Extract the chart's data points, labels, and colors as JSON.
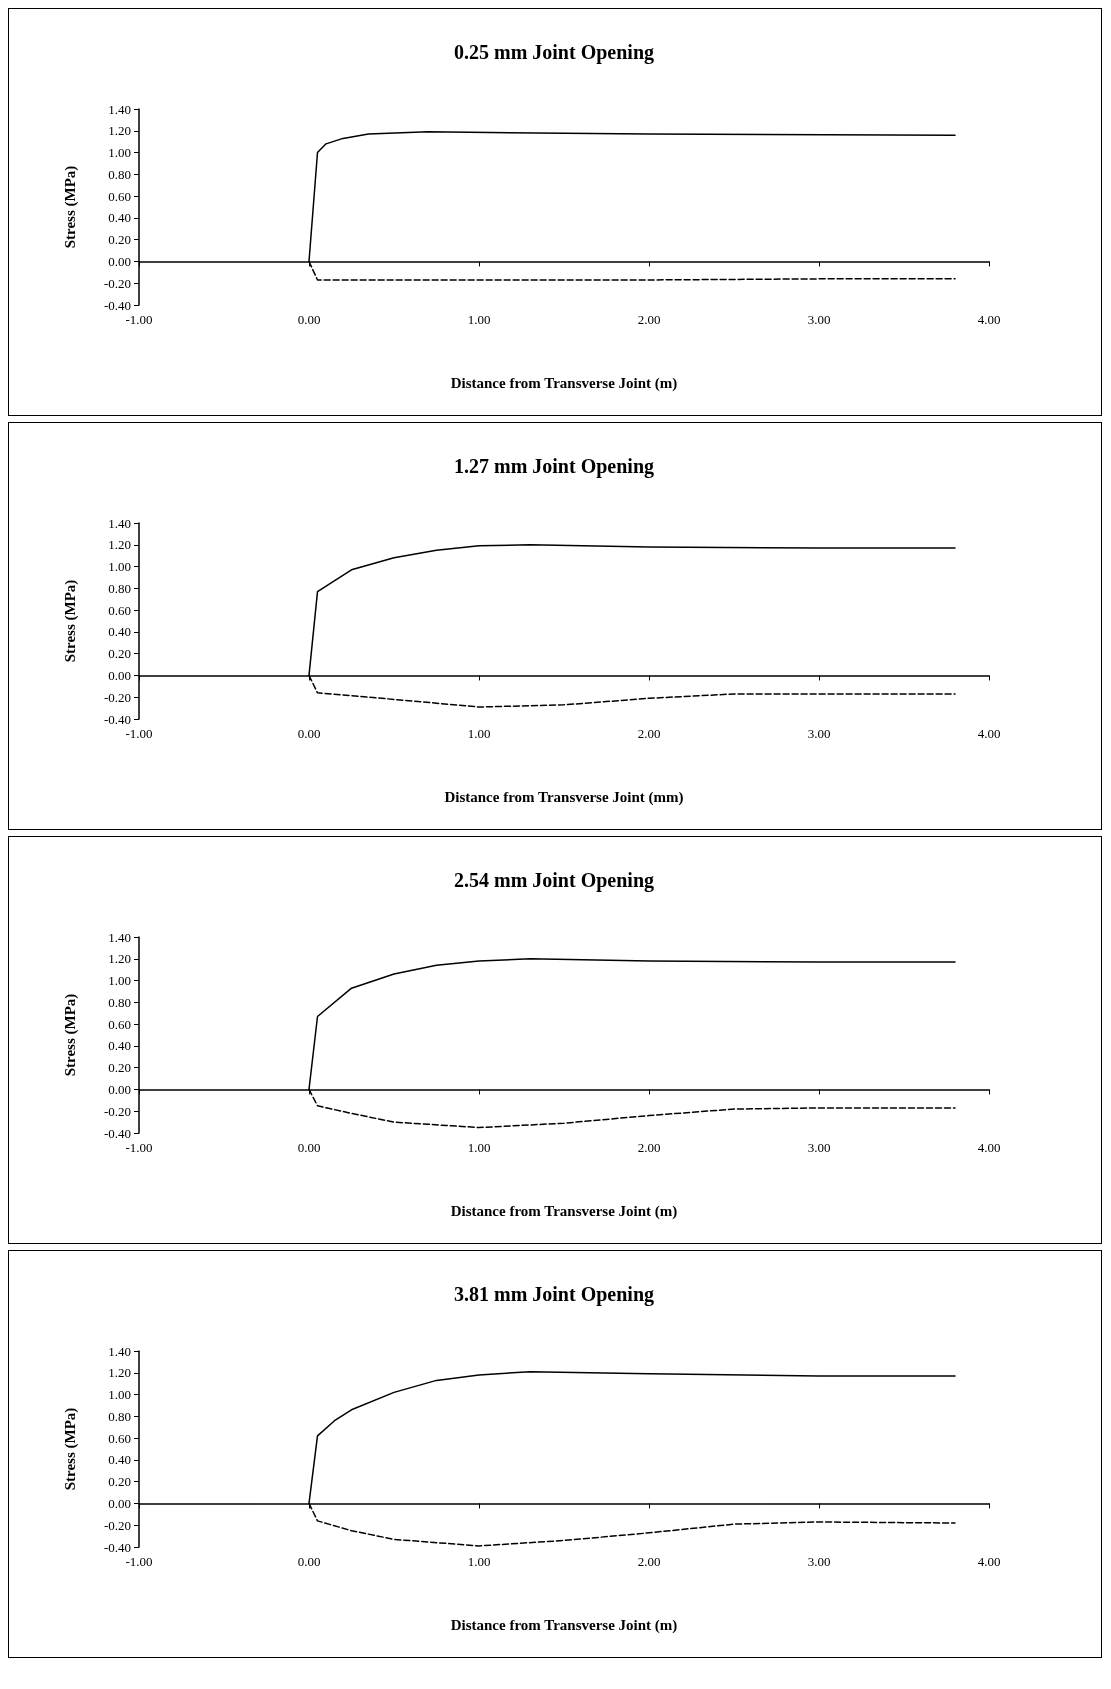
{
  "chart_data": [
    {
      "type": "line",
      "title": "0.25 mm Joint Opening",
      "xlabel": "Distance from Transverse Joint (m)",
      "ylabel": "Stress (MPa)",
      "xlim": [
        -1,
        4
      ],
      "ylim": [
        -0.4,
        1.4
      ],
      "xticks": [
        {
          "value": -1,
          "label": "-1.00"
        },
        {
          "value": 0,
          "label": "0.00"
        },
        {
          "value": 1,
          "label": "1.00"
        },
        {
          "value": 2,
          "label": "2.00"
        },
        {
          "value": 3,
          "label": "3.00"
        },
        {
          "value": 4,
          "label": "4.00"
        }
      ],
      "yticks": [
        {
          "value": -0.4,
          "label": "-0.40"
        },
        {
          "value": -0.2,
          "label": "-0.20"
        },
        {
          "value": 0,
          "label": "0.00"
        },
        {
          "value": 0.2,
          "label": "0.20"
        },
        {
          "value": 0.4,
          "label": "0.40"
        },
        {
          "value": 0.6,
          "label": "0.60"
        },
        {
          "value": 0.8,
          "label": "0.80"
        },
        {
          "value": 1,
          "label": "1.00"
        },
        {
          "value": 1.2,
          "label": "1.20"
        },
        {
          "value": 1.4,
          "label": "1.40"
        }
      ],
      "marker": "none",
      "series": [
        {
          "color": "#000000",
          "line_style": "solid",
          "x": [
            0,
            0.05,
            0.1,
            0.2,
            0.35,
            0.7,
            2.0,
            3.8
          ],
          "values": [
            0,
            1.0,
            1.08,
            1.13,
            1.17,
            1.19,
            1.17,
            1.16
          ]
        },
        {
          "color": "#000000",
          "line_style": "dashed",
          "x": [
            0,
            0.05,
            1.0,
            2.0,
            3.0,
            3.8
          ],
          "values": [
            0,
            -0.17,
            -0.17,
            -0.17,
            -0.16,
            -0.16
          ]
        }
      ]
    },
    {
      "type": "line",
      "title": "1.27 mm Joint Opening",
      "xlabel": "Distance from Transverse Joint (mm)",
      "ylabel": "Stress (MPa)",
      "xlim": [
        -1,
        4
      ],
      "ylim": [
        -0.4,
        1.4
      ],
      "xticks": [
        {
          "value": -1,
          "label": "-1.00"
        },
        {
          "value": 0,
          "label": "0.00"
        },
        {
          "value": 1,
          "label": "1.00"
        },
        {
          "value": 2,
          "label": "2.00"
        },
        {
          "value": 3,
          "label": "3.00"
        },
        {
          "value": 4,
          "label": "4.00"
        }
      ],
      "yticks": [
        {
          "value": -0.4,
          "label": "-0.40"
        },
        {
          "value": -0.2,
          "label": "-0.20"
        },
        {
          "value": 0,
          "label": "0.00"
        },
        {
          "value": 0.2,
          "label": "0.20"
        },
        {
          "value": 0.4,
          "label": "0.40"
        },
        {
          "value": 0.6,
          "label": "0.60"
        },
        {
          "value": 0.8,
          "label": "0.80"
        },
        {
          "value": 1,
          "label": "1.00"
        },
        {
          "value": 1.2,
          "label": "1.20"
        },
        {
          "value": 1.4,
          "label": "1.40"
        }
      ],
      "marker": "none",
      "series": [
        {
          "color": "#000000",
          "line_style": "solid",
          "x": [
            0,
            0.05,
            0.25,
            0.5,
            0.75,
            1.0,
            1.3,
            2.0,
            3.0,
            3.8
          ],
          "values": [
            0,
            0.77,
            0.97,
            1.08,
            1.15,
            1.19,
            1.2,
            1.18,
            1.17,
            1.17
          ]
        },
        {
          "color": "#000000",
          "line_style": "dashed",
          "x": [
            0,
            0.05,
            0.5,
            1.0,
            1.5,
            2.0,
            2.5,
            3.0,
            3.8
          ],
          "values": [
            0,
            -0.16,
            -0.22,
            -0.29,
            -0.27,
            -0.21,
            -0.17,
            -0.17,
            -0.17
          ]
        }
      ]
    },
    {
      "type": "line",
      "title": "2.54 mm Joint Opening",
      "xlabel": "Distance from Transverse Joint (m)",
      "ylabel": "Stress (MPa)",
      "xlim": [
        -1,
        4
      ],
      "ylim": [
        -0.4,
        1.4
      ],
      "xticks": [
        {
          "value": -1,
          "label": "-1.00"
        },
        {
          "value": 0,
          "label": "0.00"
        },
        {
          "value": 1,
          "label": "1.00"
        },
        {
          "value": 2,
          "label": "2.00"
        },
        {
          "value": 3,
          "label": "3.00"
        },
        {
          "value": 4,
          "label": "4.00"
        }
      ],
      "yticks": [
        {
          "value": -0.4,
          "label": "-0.40"
        },
        {
          "value": -0.2,
          "label": "-0.20"
        },
        {
          "value": 0,
          "label": "0.00"
        },
        {
          "value": 0.2,
          "label": "0.20"
        },
        {
          "value": 0.4,
          "label": "0.40"
        },
        {
          "value": 0.6,
          "label": "0.60"
        },
        {
          "value": 0.8,
          "label": "0.80"
        },
        {
          "value": 1,
          "label": "1.00"
        },
        {
          "value": 1.2,
          "label": "1.20"
        },
        {
          "value": 1.4,
          "label": "1.40"
        }
      ],
      "marker": "none",
      "series": [
        {
          "color": "#000000",
          "line_style": "solid",
          "x": [
            0,
            0.05,
            0.25,
            0.5,
            0.75,
            1.0,
            1.3,
            2.0,
            3.0,
            3.8
          ],
          "values": [
            0,
            0.67,
            0.93,
            1.06,
            1.14,
            1.18,
            1.2,
            1.18,
            1.17,
            1.17
          ]
        },
        {
          "color": "#000000",
          "line_style": "dashed",
          "x": [
            0,
            0.05,
            0.25,
            0.5,
            1.0,
            1.5,
            2.0,
            2.5,
            3.0,
            3.8
          ],
          "values": [
            0,
            -0.15,
            -0.22,
            -0.3,
            -0.35,
            -0.31,
            -0.24,
            -0.18,
            -0.17,
            -0.17
          ]
        }
      ]
    },
    {
      "type": "line",
      "title": "3.81 mm Joint Opening",
      "xlabel": "Distance from Transverse Joint (m)",
      "ylabel": "Stress (MPa)",
      "xlim": [
        -1,
        4
      ],
      "ylim": [
        -0.4,
        1.4
      ],
      "xticks": [
        {
          "value": -1,
          "label": "-1.00"
        },
        {
          "value": 0,
          "label": "0.00"
        },
        {
          "value": 1,
          "label": "1.00"
        },
        {
          "value": 2,
          "label": "2.00"
        },
        {
          "value": 3,
          "label": "3.00"
        },
        {
          "value": 4,
          "label": "4.00"
        }
      ],
      "yticks": [
        {
          "value": -0.4,
          "label": "-0.40"
        },
        {
          "value": -0.2,
          "label": "-0.20"
        },
        {
          "value": 0,
          "label": "0.00"
        },
        {
          "value": 0.2,
          "label": "0.20"
        },
        {
          "value": 0.4,
          "label": "0.40"
        },
        {
          "value": 0.6,
          "label": "0.60"
        },
        {
          "value": 0.8,
          "label": "0.80"
        },
        {
          "value": 1,
          "label": "1.00"
        },
        {
          "value": 1.2,
          "label": "1.20"
        },
        {
          "value": 1.4,
          "label": "1.40"
        }
      ],
      "marker": "none",
      "series": [
        {
          "color": "#000000",
          "line_style": "solid",
          "x": [
            0,
            0.05,
            0.15,
            0.25,
            0.5,
            0.75,
            1.0,
            1.3,
            2.0,
            3.0,
            3.8
          ],
          "values": [
            0,
            0.62,
            0.76,
            0.86,
            1.02,
            1.13,
            1.18,
            1.21,
            1.19,
            1.17,
            1.17
          ]
        },
        {
          "color": "#000000",
          "line_style": "dashed",
          "x": [
            0,
            0.05,
            0.25,
            0.5,
            1.0,
            1.5,
            2.0,
            2.5,
            3.0,
            3.8
          ],
          "values": [
            0,
            -0.16,
            -0.25,
            -0.33,
            -0.39,
            -0.34,
            -0.27,
            -0.19,
            -0.17,
            -0.18
          ]
        }
      ]
    }
  ]
}
